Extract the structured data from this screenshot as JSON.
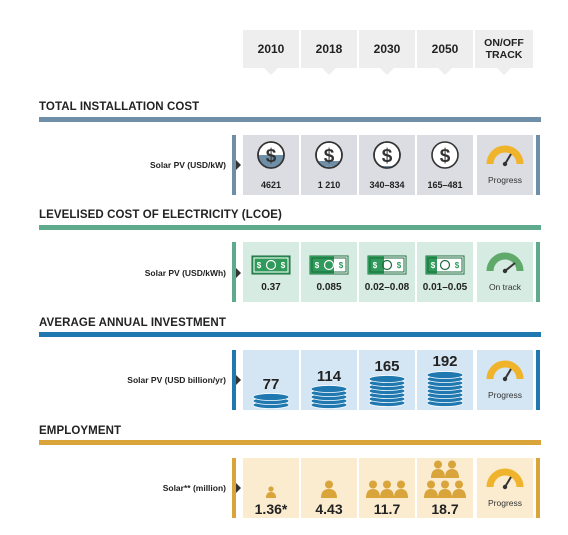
{
  "columns": [
    "2010",
    "2018",
    "2030",
    "2050"
  ],
  "track_header": "ON/OFF\nTRACK",
  "sections": [
    {
      "title": "TOTAL INSTALLATION COST",
      "label": "Solar PV (USD/kW)",
      "color": "#6f8fa8",
      "cell_bg": "#dcdde3",
      "values": [
        "4621",
        "1 210",
        "340–834",
        "165–481"
      ],
      "status": "Progress"
    },
    {
      "title": "LEVELISED COST OF ELECTRICITY (LCOE)",
      "label": "Solar PV (USD/kWh)",
      "color": "#5faa8c",
      "cell_bg": "#d6ebe1",
      "values": [
        "0.37",
        "0.085",
        "0.02–0.08",
        "0.01–0.05"
      ],
      "status": "On track"
    },
    {
      "title": "AVERAGE ANNUAL INVESTMENT",
      "label": "Solar PV  (USD billion/yr)",
      "color": "#1f78b0",
      "cell_bg": "#d4e6f3",
      "values": [
        "77",
        "114",
        "165",
        "192"
      ],
      "status": "Progress"
    },
    {
      "title": "EMPLOYMENT",
      "label": "Solar** (million)",
      "color": "#d9a53a",
      "cell_bg": "#fbecd0",
      "values": [
        "1.36*",
        "4.43",
        "11.7",
        "18.7"
      ],
      "status": "Progress"
    }
  ],
  "icons": {
    "cost": "dollar-coin-icon",
    "lcoe": "banknote-icon",
    "investment": "coin-stack-icon",
    "employment": "people-icon",
    "status": "gauge-icon"
  },
  "gauge_colors": {
    "progress": "#f0b42c",
    "on_track": "#5faa6a",
    "needle": "#333333"
  }
}
